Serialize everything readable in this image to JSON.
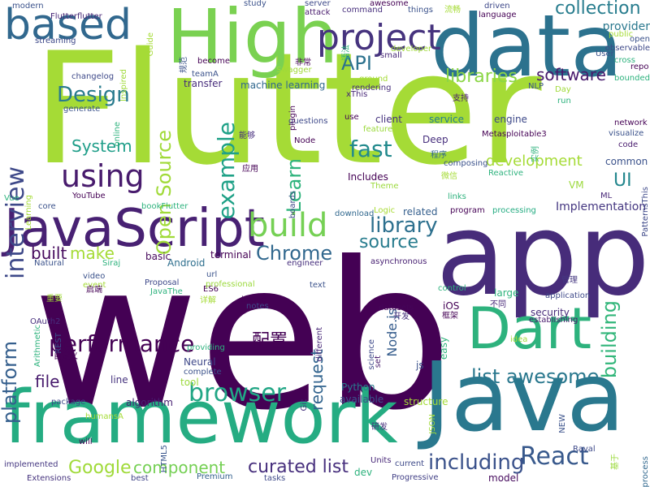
{
  "words": [
    {
      "text": "Flutter",
      "color": "#a5db36"
    },
    {
      "text": "web",
      "color": "#440154"
    },
    {
      "text": "app",
      "color": "#472c7a"
    },
    {
      "text": "Java",
      "color": "#2a788e"
    },
    {
      "text": "framework",
      "color": "#25ac82"
    },
    {
      "text": "data",
      "color": "#2c728e"
    },
    {
      "text": "High",
      "color": "#7ad151"
    },
    {
      "text": "JavaScript",
      "color": "#482173"
    },
    {
      "text": "Dart",
      "color": "#2db27d"
    },
    {
      "text": "based",
      "color": "#31688e"
    },
    {
      "text": "project",
      "color": "#46337e"
    },
    {
      "text": "React",
      "color": "#38598c"
    },
    {
      "text": "interview",
      "color": "#3e4989"
    },
    {
      "text": "build",
      "color": "#75d054"
    },
    {
      "text": "using",
      "color": "#481b6d"
    },
    {
      "text": "Chrome",
      "color": "#31688e"
    },
    {
      "text": "browser",
      "color": "#21a685"
    },
    {
      "text": "platform",
      "color": "#355f8d"
    },
    {
      "text": "performance",
      "color": "#440154"
    },
    {
      "text": "Design",
      "color": "#297b8e"
    },
    {
      "text": "Open Source",
      "color": "#a0da39"
    },
    {
      "text": "example",
      "color": "#1fa187"
    },
    {
      "text": "Learn",
      "color": "#2eb37c"
    },
    {
      "text": "fast",
      "color": "#238a8d"
    },
    {
      "text": "building",
      "color": "#32b67a"
    },
    {
      "text": "including",
      "color": "#3b528b"
    },
    {
      "text": "list awesome",
      "color": "#2a788e"
    },
    {
      "text": "collection",
      "color": "#287d8e"
    },
    {
      "text": "API",
      "color": "#2c728e"
    },
    {
      "text": "libraries",
      "color": "#8bd646"
    },
    {
      "text": "software",
      "color": "#481a6c"
    },
    {
      "text": "System",
      "color": "#1f9e89"
    },
    {
      "text": "library",
      "color": "#2d708e"
    },
    {
      "text": "source",
      "color": "#287c8e"
    },
    {
      "text": "make",
      "color": "#a5db36"
    },
    {
      "text": "built",
      "color": "#460a5d"
    },
    {
      "text": "curated list",
      "color": "#472f7d"
    },
    {
      "text": "Google",
      "color": "#a0da39"
    },
    {
      "text": "component",
      "color": "#75d054"
    },
    {
      "text": "development",
      "color": "#a5db36"
    },
    {
      "text": "request",
      "color": "#32648e"
    },
    {
      "text": "file",
      "color": "#481b6d"
    },
    {
      "text": "UI",
      "color": "#24878e"
    },
    {
      "text": "配置",
      "color": "#440154"
    },
    {
      "text": "Implementation",
      "color": "#453781"
    },
    {
      "text": "provider",
      "color": "#2a788e"
    },
    {
      "text": "engine",
      "color": "#3e4989"
    },
    {
      "text": "service",
      "color": "#277f8e"
    },
    {
      "text": "client",
      "color": "#46337e"
    },
    {
      "text": "Includes",
      "color": "#440154"
    },
    {
      "text": "Android",
      "color": "#2e6f8e"
    },
    {
      "text": "Deep",
      "color": "#472f7d"
    },
    {
      "text": "Node.js",
      "color": "#365d8d"
    },
    {
      "text": "iOS",
      "color": "#440154"
    },
    {
      "text": "security",
      "color": "#472a7a"
    },
    {
      "text": "large",
      "color": "#2fb47c"
    },
    {
      "text": "Python",
      "color": "#297b8e"
    },
    {
      "text": "available",
      "color": "#3b528b"
    },
    {
      "text": "structure",
      "color": "#a5db36"
    },
    {
      "text": "machine learning",
      "color": "#31688e"
    },
    {
      "text": "transfer",
      "color": "#472d7b"
    },
    {
      "text": "Reactive",
      "color": "#2db27d"
    },
    {
      "text": "common",
      "color": "#3b528b"
    },
    {
      "text": "VM",
      "color": "#9bd93c"
    },
    {
      "text": "related",
      "color": "#355f8d"
    },
    {
      "text": "Logic",
      "color": "#a8db34"
    },
    {
      "text": "processing",
      "color": "#25ac82"
    },
    {
      "text": "Chrome build",
      "color": "#440154"
    },
    {
      "text": "basic",
      "color": "#46085c"
    },
    {
      "text": "terminal",
      "color": "#440154"
    },
    {
      "text": "Neural",
      "color": "#3f4889"
    },
    {
      "text": "tool",
      "color": "#9bd93c"
    },
    {
      "text": "complete",
      "color": "#3b528b"
    },
    {
      "text": "algorithm",
      "color": "#482173"
    },
    {
      "text": "line",
      "color": "#46337e"
    },
    {
      "text": "easy",
      "color": "#2fb47c"
    },
    {
      "text": "dev",
      "color": "#2db27d"
    },
    {
      "text": "model",
      "color": "#460a5d"
    },
    {
      "text": "tasks",
      "color": "#3e4989"
    },
    {
      "text": "Units",
      "color": "#482878"
    },
    {
      "text": "current",
      "color": "#3e4a89"
    },
    {
      "text": "Progressive",
      "color": "#424086"
    },
    {
      "text": "Extensions",
      "color": "#46337e"
    },
    {
      "text": "implemented",
      "color": "#453781"
    },
    {
      "text": "Premium",
      "color": "#34618d"
    },
    {
      "text": "best",
      "color": "#404588"
    },
    {
      "text": "Raval",
      "color": "#3e4989"
    },
    {
      "text": "基于",
      "color": "#9bd93c"
    },
    {
      "text": "process",
      "color": "#31688e"
    },
    {
      "text": "JSON",
      "color": "#a0da39"
    },
    {
      "text": "NEW",
      "color": "#3b528b"
    },
    {
      "text": "研发",
      "color": "#472f7d"
    },
    {
      "text": "package",
      "color": "#3e4989"
    },
    {
      "text": "humansA",
      "color": "#a5db36"
    },
    {
      "text": "will",
      "color": "#440154"
    },
    {
      "text": "HTML5",
      "color": "#39558c"
    },
    {
      "text": "Git",
      "color": "#46337e"
    },
    {
      "text": "set",
      "color": "#481b6d"
    },
    {
      "text": "js",
      "color": "#3b528b"
    },
    {
      "text": "science",
      "color": "#3e4989"
    },
    {
      "text": "datasets",
      "color": "#450559"
    },
    {
      "text": "开发",
      "color": "#472f7d"
    },
    {
      "text": "框架",
      "color": "#440154"
    },
    {
      "text": "不同",
      "color": "#482878"
    },
    {
      "text": "idea",
      "color": "#a0da39"
    },
    {
      "text": "application",
      "color": "#3e4989"
    },
    {
      "text": "establishing",
      "color": "#481b6d"
    },
    {
      "text": "管理",
      "color": "#453781"
    },
    {
      "text": "control",
      "color": "#2db27d"
    },
    {
      "text": "text",
      "color": "#3b528b"
    },
    {
      "text": "different",
      "color": "#482878"
    },
    {
      "text": "notes",
      "color": "#3e4989"
    },
    {
      "text": "image",
      "color": "#440154"
    },
    {
      "text": "ES6",
      "color": "#440154"
    },
    {
      "text": "url",
      "color": "#3b528b"
    },
    {
      "text": "详解",
      "color": "#a5db36"
    },
    {
      "text": "engineer",
      "color": "#472f7d"
    },
    {
      "text": "asynchronous",
      "color": "#482173"
    },
    {
      "text": "professional",
      "color": "#9bd93c"
    },
    {
      "text": "Siraj",
      "color": "#2db27d"
    },
    {
      "text": "Proposal",
      "color": "#3e4989"
    },
    {
      "text": "JavaThe",
      "color": "#2db27d"
    },
    {
      "text": "providing",
      "color": "#2db27d"
    },
    {
      "text": "event",
      "color": "#a5db36"
    },
    {
      "text": "video",
      "color": "#3b528b"
    },
    {
      "text": "启端",
      "color": "#440154"
    },
    {
      "text": "重要",
      "color": "#a0da39"
    },
    {
      "text": "Arithmetic",
      "color": "#2db27d"
    },
    {
      "text": "REST",
      "color": "#3b528b"
    },
    {
      "text": "OAuth2",
      "color": "#472f7d"
    },
    {
      "text": "自定义",
      "color": "#440154"
    },
    {
      "text": "Natural",
      "color": "#3b528b"
    },
    {
      "text": "core",
      "color": "#3b528b"
    },
    {
      "text": "Vue",
      "color": "#2db27d"
    },
    {
      "text": "Learning",
      "color": "#a5db36"
    },
    {
      "text": "YouTube",
      "color": "#440154"
    },
    {
      "text": "bookFlutter",
      "color": "#2db27d"
    },
    {
      "text": "Theme",
      "color": "#9bd93c"
    },
    {
      "text": "download",
      "color": "#31688e"
    },
    {
      "text": "program",
      "color": "#440154"
    },
    {
      "text": "links",
      "color": "#2db27d"
    },
    {
      "text": "PatternsThis",
      "color": "#3e4989"
    },
    {
      "text": "ML",
      "color": "#482878"
    },
    {
      "text": "visualize",
      "color": "#3b528b"
    },
    {
      "text": "code",
      "color": "#481b6d"
    },
    {
      "text": "network",
      "color": "#440154"
    },
    {
      "text": "Metasploitable3",
      "color": "#440154"
    },
    {
      "text": "微信",
      "color": "#a5db36"
    },
    {
      "text": "composing",
      "color": "#3b528b"
    },
    {
      "text": "程序",
      "color": "#31688e"
    },
    {
      "text": "实例",
      "color": "#2db27d"
    },
    {
      "text": "feature",
      "color": "#9bd93c"
    },
    {
      "text": "use",
      "color": "#440154"
    },
    {
      "text": "questions",
      "color": "#3e4989"
    },
    {
      "text": "能够",
      "color": "#472f7d"
    },
    {
      "text": "应用",
      "color": "#440154"
    },
    {
      "text": "Node",
      "color": "#440154"
    },
    {
      "text": "支持",
      "color": "#481b6d"
    },
    {
      "text": "Day",
      "color": "#a0da39"
    },
    {
      "text": "run",
      "color": "#2db27d"
    },
    {
      "text": "NLP",
      "color": "#3b528b"
    },
    {
      "text": "xThis",
      "color": "#482878"
    },
    {
      "text": "boards",
      "color": "#3e4989"
    },
    {
      "text": "rendering",
      "color": "#472f7d"
    },
    {
      "text": "ground",
      "color": "#a5db36"
    },
    {
      "text": "plugin",
      "color": "#440154"
    },
    {
      "text": "Swagger",
      "color": "#a0da39"
    },
    {
      "text": "非常",
      "color": "#440154"
    },
    {
      "text": "become",
      "color": "#440154"
    },
    {
      "text": "规范",
      "color": "#3b528b"
    },
    {
      "text": "teamA",
      "color": "#3b528b"
    },
    {
      "text": "small",
      "color": "#482878"
    },
    {
      "text": "developer",
      "color": "#a0da39"
    },
    {
      "text": "语法",
      "color": "#2db27d"
    },
    {
      "text": "cross",
      "color": "#2db27d"
    },
    {
      "text": "User",
      "color": "#3b528b"
    },
    {
      "text": "observable",
      "color": "#3e4989"
    },
    {
      "text": "open",
      "color": "#3b528b"
    },
    {
      "text": "public",
      "color": "#a5db36"
    },
    {
      "text": "bounded",
      "color": "#2db27d"
    },
    {
      "text": "repo",
      "color": "#440154"
    },
    {
      "text": "language",
      "color": "#440154"
    },
    {
      "text": "driven",
      "color": "#3e4989"
    },
    {
      "text": "流畅",
      "color": "#a5db36"
    },
    {
      "text": "things",
      "color": "#3b528b"
    },
    {
      "text": "awesome",
      "color": "#440154"
    },
    {
      "text": "command",
      "color": "#472f7d"
    },
    {
      "text": "server",
      "color": "#3e4989"
    },
    {
      "text": "attack",
      "color": "#481b6d"
    },
    {
      "text": "study",
      "color": "#3b528b"
    },
    {
      "text": "Guide",
      "color": "#a5db36"
    },
    {
      "text": "Inspired",
      "color": "#a0da39"
    },
    {
      "text": "online",
      "color": "#2db27d"
    },
    {
      "text": "changelog",
      "color": "#3e4989"
    },
    {
      "text": "generate",
      "color": "#3b528b"
    },
    {
      "text": "modern",
      "color": "#3b528b"
    },
    {
      "text": "Flutterflutter",
      "color": "#482878"
    },
    {
      "text": "streaming",
      "color": "#3e4989"
    }
  ]
}
